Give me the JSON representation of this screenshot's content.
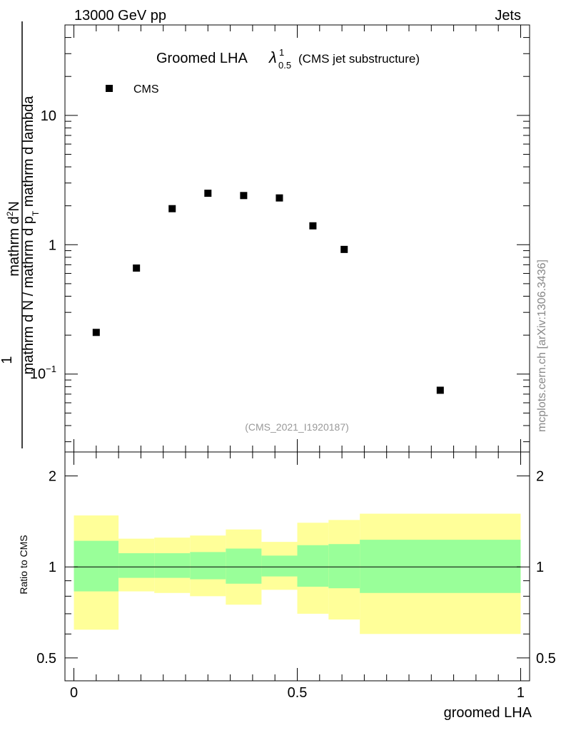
{
  "header": {
    "left": "13000 GeV pp",
    "right": "Jets"
  },
  "side_label": "mcplots.cern.ch [arXiv:1306.3436]",
  "chart_data": [
    {
      "type": "scatter",
      "title_main": "Groomed LHA",
      "title_symbol": "λ",
      "title_sup": "1",
      "title_sub": "0.5",
      "title_suffix": "(CMS jet substructure)",
      "analysis_id": "(CMS_2021_I1920187)",
      "yscale": "log",
      "ylim": [
        0.025,
        50
      ],
      "xlim": [
        -0.02,
        1.02
      ],
      "ylabel": {
        "prefix": "1",
        "denominator": "mathrm d N / mathrm d p",
        "denominator_sub": "T",
        "numerator": "mathrm d",
        "numerator_sup": "2",
        "numerator_rest": "N",
        "full_denominator_1": "mathrm d p",
        "full_denominator_1_sub": "T",
        "full_denominator_2": " mathrm d lambda"
      },
      "yticks": [
        {
          "value": 0.1,
          "base": "10",
          "exp": "−1"
        },
        {
          "value": 1,
          "label": "1"
        },
        {
          "value": 10,
          "label": "10"
        }
      ],
      "series": [
        {
          "name": "CMS",
          "marker": "square",
          "color": "#000000",
          "points": [
            {
              "x": 0.05,
              "y": 0.21
            },
            {
              "x": 0.14,
              "y": 0.66
            },
            {
              "x": 0.22,
              "y": 1.9
            },
            {
              "x": 0.3,
              "y": 2.5
            },
            {
              "x": 0.38,
              "y": 2.4
            },
            {
              "x": 0.46,
              "y": 2.3
            },
            {
              "x": 0.535,
              "y": 1.4
            },
            {
              "x": 0.605,
              "y": 0.92
            },
            {
              "x": 0.82,
              "y": 0.075
            }
          ]
        }
      ]
    },
    {
      "type": "area",
      "ylabel": "Ratio to CMS",
      "xlabel": "groomed LHA",
      "yscale": "log",
      "ylim": [
        0.42,
        2.4
      ],
      "xlim": [
        -0.02,
        1.02
      ],
      "yticks": [
        {
          "value": 0.5,
          "label": "0.5"
        },
        {
          "value": 1,
          "label": "1"
        },
        {
          "value": 2,
          "label": "2"
        }
      ],
      "xticks": [
        {
          "value": 0,
          "label": "0"
        },
        {
          "value": 0.5,
          "label": "0.5"
        },
        {
          "value": 1,
          "label": "1"
        }
      ],
      "band_colors": {
        "outer": "#ffff99",
        "inner": "#99ff99",
        "line": "#000000"
      },
      "bins": [
        {
          "lo": 0.0,
          "hi": 0.1,
          "outer": [
            0.62,
            1.48
          ],
          "inner": [
            0.83,
            1.22
          ]
        },
        {
          "lo": 0.1,
          "hi": 0.18,
          "outer": [
            0.83,
            1.24
          ],
          "inner": [
            0.92,
            1.11
          ]
        },
        {
          "lo": 0.18,
          "hi": 0.26,
          "outer": [
            0.82,
            1.25
          ],
          "inner": [
            0.92,
            1.11
          ]
        },
        {
          "lo": 0.26,
          "hi": 0.34,
          "outer": [
            0.8,
            1.27
          ],
          "inner": [
            0.91,
            1.12
          ]
        },
        {
          "lo": 0.34,
          "hi": 0.42,
          "outer": [
            0.75,
            1.33
          ],
          "inner": [
            0.88,
            1.15
          ]
        },
        {
          "lo": 0.42,
          "hi": 0.5,
          "outer": [
            0.84,
            1.21
          ],
          "inner": [
            0.93,
            1.09
          ]
        },
        {
          "lo": 0.5,
          "hi": 0.57,
          "outer": [
            0.7,
            1.4
          ],
          "inner": [
            0.86,
            1.18
          ]
        },
        {
          "lo": 0.57,
          "hi": 0.64,
          "outer": [
            0.67,
            1.43
          ],
          "inner": [
            0.85,
            1.19
          ]
        },
        {
          "lo": 0.64,
          "hi": 1.0,
          "outer": [
            0.6,
            1.5
          ],
          "inner": [
            0.82,
            1.23
          ]
        }
      ],
      "reference_line": 1
    }
  ]
}
